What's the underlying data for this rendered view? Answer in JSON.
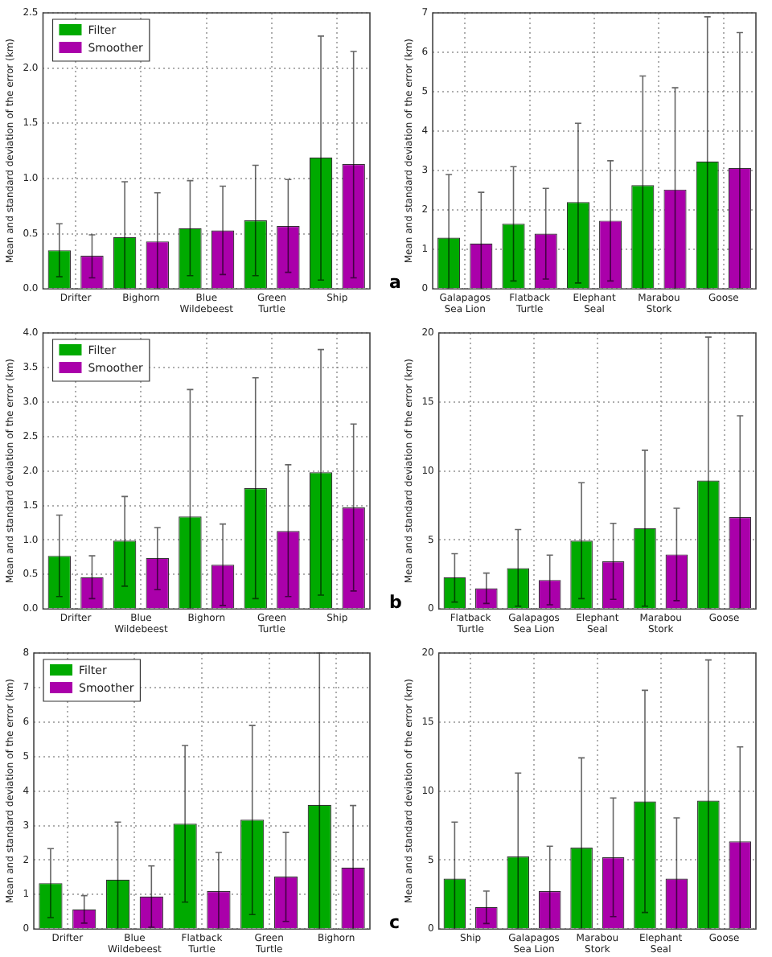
{
  "chart_data": [
    {
      "type": "bar",
      "ylabel": "Mean and standard deviation of the error (km)",
      "categories": [
        "Drifter",
        "Bighorn",
        "Blue Wildebeest",
        "Green Turtle",
        "Ship"
      ],
      "series": [
        {
          "name": "Filter",
          "color": "#00aa00",
          "values": [
            0.35,
            0.47,
            0.55,
            0.62,
            1.19
          ],
          "errors": [
            [
              0.11,
              0.59
            ],
            [
              0,
              0.97
            ],
            [
              0.12,
              0.98
            ],
            [
              0.12,
              1.12
            ],
            [
              0.08,
              2.29
            ]
          ]
        },
        {
          "name": "Smoother",
          "color": "#aa00aa",
          "values": [
            0.3,
            0.43,
            0.53,
            0.57,
            1.13
          ],
          "errors": [
            [
              0.1,
              0.49
            ],
            [
              0,
              0.87
            ],
            [
              0.13,
              0.93
            ],
            [
              0.15,
              0.99
            ],
            [
              0.1,
              2.15
            ]
          ]
        }
      ],
      "ylim": [
        0,
        2.5
      ],
      "yticks": [
        {
          "value": 0,
          "label": "0.0"
        },
        0.5,
        {
          "value": 1,
          "label": "1.0"
        },
        1.5,
        {
          "value": 2,
          "label": "2.0"
        },
        2.5
      ],
      "grid": true,
      "legend": "top left"
    },
    {
      "type": "bar",
      "ylabel": "Mean and standard deviation of the error (km)",
      "categories": [
        "Galapagos Sea Lion",
        "Flatback Turtle",
        "Elephant Seal",
        "Marabou Stork",
        "Goose"
      ],
      "series": [
        {
          "color": "#00aa00",
          "values": [
            1.3,
            1.65,
            2.2,
            2.63,
            3.23
          ],
          "errors": [
            [
              0,
              2.9
            ],
            [
              0.2,
              3.1
            ],
            [
              0.15,
              4.2
            ],
            [
              0,
              5.4
            ],
            [
              0,
              6.9
            ]
          ]
        },
        {
          "color": "#aa00aa",
          "values": [
            1.15,
            1.4,
            1.73,
            2.52,
            3.07
          ],
          "errors": [
            [
              0,
              2.45
            ],
            [
              0.25,
              2.55
            ],
            [
              0.2,
              3.25
            ],
            [
              0,
              5.1
            ],
            [
              0,
              6.5
            ]
          ]
        }
      ],
      "ylim": [
        0,
        7
      ],
      "yticks": [
        0,
        1,
        2,
        3,
        4,
        5,
        6,
        7
      ],
      "grid": true,
      "annotations": [
        "a"
      ]
    },
    {
      "type": "bar",
      "ylabel": "Mean and standard deviation of the error (km)",
      "categories": [
        "Drifter",
        "Blue Wildebeest",
        "Bighorn",
        "Green Turtle",
        "Ship"
      ],
      "series": [
        {
          "name": "Filter",
          "color": "#00aa00",
          "values": [
            0.77,
            0.99,
            1.34,
            1.75,
            1.98
          ],
          "errors": [
            [
              0.18,
              1.36
            ],
            [
              0.33,
              1.63
            ],
            [
              0,
              3.18
            ],
            [
              0.15,
              3.35
            ],
            [
              0.2,
              3.76
            ]
          ]
        },
        {
          "name": "Smoother",
          "color": "#aa00aa",
          "values": [
            0.46,
            0.74,
            0.64,
            1.13,
            1.47
          ],
          "errors": [
            [
              0.15,
              0.77
            ],
            [
              0.28,
              1.18
            ],
            [
              0.05,
              1.23
            ],
            [
              0.18,
              2.09
            ],
            [
              0.26,
              2.68
            ]
          ]
        }
      ],
      "ylim": [
        0,
        4
      ],
      "yticks": [
        {
          "value": 0,
          "label": "0.0"
        },
        0.5,
        {
          "value": 1,
          "label": "1.0"
        },
        1.5,
        {
          "value": 2,
          "label": "2.0"
        },
        2.5,
        {
          "value": 3,
          "label": "3.0"
        },
        3.5,
        {
          "value": 4,
          "label": "4.0"
        }
      ],
      "grid": true,
      "legend": "top left"
    },
    {
      "type": "bar",
      "ylabel": "Mean and standard deviation of the error (km)",
      "categories": [
        "Flatback Turtle",
        "Galapagos Sea Lion",
        "Elephant Seal",
        "Marabou Stork",
        "Goose"
      ],
      "series": [
        {
          "color": "#00aa00",
          "values": [
            2.3,
            2.95,
            4.95,
            5.85,
            9.3
          ],
          "errors": [
            [
              0.5,
              4
            ],
            [
              0.2,
              5.75
            ],
            [
              0.75,
              9.15
            ],
            [
              0.2,
              11.5
            ],
            [
              0,
              19.7
            ]
          ]
        },
        {
          "color": "#aa00aa",
          "values": [
            1.5,
            2.1,
            3.45,
            3.95,
            6.65
          ],
          "errors": [
            [
              0.4,
              2.6
            ],
            [
              0.3,
              3.9
            ],
            [
              0.7,
              6.2
            ],
            [
              0.6,
              7.3
            ],
            [
              0,
              14
            ]
          ]
        }
      ],
      "ylim": [
        0,
        20
      ],
      "yticks": [
        0,
        5,
        10,
        15,
        20
      ],
      "grid": true,
      "annotations": [
        "b"
      ]
    },
    {
      "type": "bar",
      "ylabel": "Mean and standard deviation of the error (km)",
      "categories": [
        "Drifter",
        "Blue Wildebeest",
        "Flatback Turtle",
        "Green Turtle",
        "Bighorn"
      ],
      "series": [
        {
          "name": "Filter",
          "color": "#00aa00",
          "values": [
            1.33,
            1.43,
            3.05,
            3.17,
            3.6
          ],
          "errors": [
            [
              0.33,
              2.33
            ],
            [
              0,
              3.1
            ],
            [
              0.78,
              5.32
            ],
            [
              0.42,
              5.9
            ],
            [
              0,
              8
            ]
          ]
        },
        {
          "name": "Smoother",
          "color": "#aa00aa",
          "values": [
            0.57,
            0.94,
            1.1,
            1.52,
            1.78
          ],
          "errors": [
            [
              0.17,
              0.97
            ],
            [
              0.05,
              1.83
            ],
            [
              0,
              2.22
            ],
            [
              0.22,
              2.8
            ],
            [
              0,
              3.58
            ]
          ]
        }
      ],
      "ylim": [
        0,
        8
      ],
      "yticks": [
        0,
        1,
        2,
        3,
        4,
        5,
        6,
        7,
        8
      ],
      "grid": true,
      "legend": "top left"
    },
    {
      "type": "bar",
      "ylabel": "Mean and standard deviation of the error (km)",
      "categories": [
        "Ship",
        "Galapagos Sea Lion",
        "Marabou Stork",
        "Elephant Seal",
        "Goose"
      ],
      "series": [
        {
          "color": "#00aa00",
          "values": [
            3.65,
            5.25,
            5.9,
            9.25,
            9.3
          ],
          "errors": [
            [
              0,
              7.75
            ],
            [
              0,
              11.3
            ],
            [
              0,
              12.4
            ],
            [
              1.2,
              17.3
            ],
            [
              0,
              19.5
            ]
          ]
        },
        {
          "color": "#aa00aa",
          "values": [
            1.6,
            2.75,
            5.2,
            3.65,
            6.35
          ],
          "errors": [
            [
              0.4,
              2.75
            ],
            [
              0,
              6
            ],
            [
              0.9,
              9.5
            ],
            [
              0,
              8.05
            ],
            [
              0,
              13.2
            ]
          ]
        }
      ],
      "ylim": [
        0,
        20
      ],
      "yticks": [
        0,
        5,
        10,
        15,
        20
      ],
      "grid": true,
      "annotations": [
        "c"
      ]
    }
  ]
}
